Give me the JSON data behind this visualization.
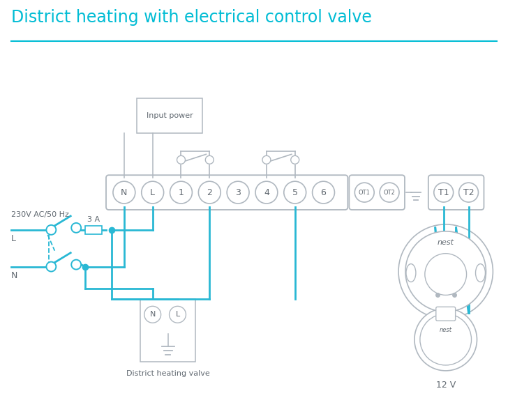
{
  "title": "District heating with electrical control valve",
  "title_color": "#00bcd4",
  "bg_color": "#ffffff",
  "wire_color": "#29b8d4",
  "outline_color": "#b0b8c0",
  "text_color": "#606870",
  "fuse_label": "3 A",
  "voltage_label": "230V AC/50 Hz",
  "L_label": "L",
  "N_label": "N",
  "district_label": "District heating valve",
  "v12_label": "12 V",
  "input_power_label": "Input power"
}
